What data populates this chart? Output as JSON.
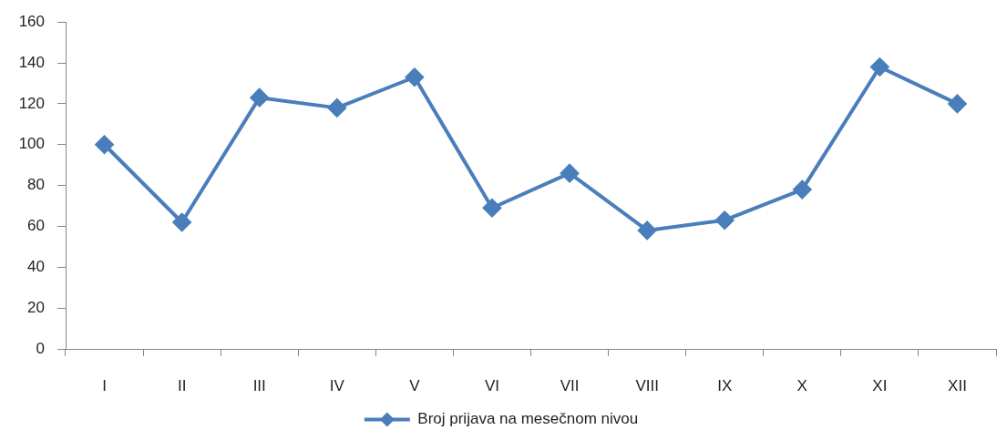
{
  "chart_data": {
    "type": "line",
    "categories": [
      "I",
      "II",
      "III",
      "IV",
      "V",
      "VI",
      "VII",
      "VIII",
      "IX",
      "X",
      "XI",
      "XII"
    ],
    "series": [
      {
        "name": "Broj prijava na mesečnom nivou",
        "color": "#4a7ebb",
        "values": [
          100,
          62,
          123,
          118,
          133,
          69,
          86,
          58,
          63,
          78,
          138,
          120
        ]
      }
    ],
    "ylim": [
      0,
      160
    ],
    "yticks": [
      0,
      20,
      40,
      60,
      80,
      100,
      120,
      140,
      160
    ],
    "marker": "diamond",
    "line_style": "solid",
    "legend": "bottom"
  }
}
